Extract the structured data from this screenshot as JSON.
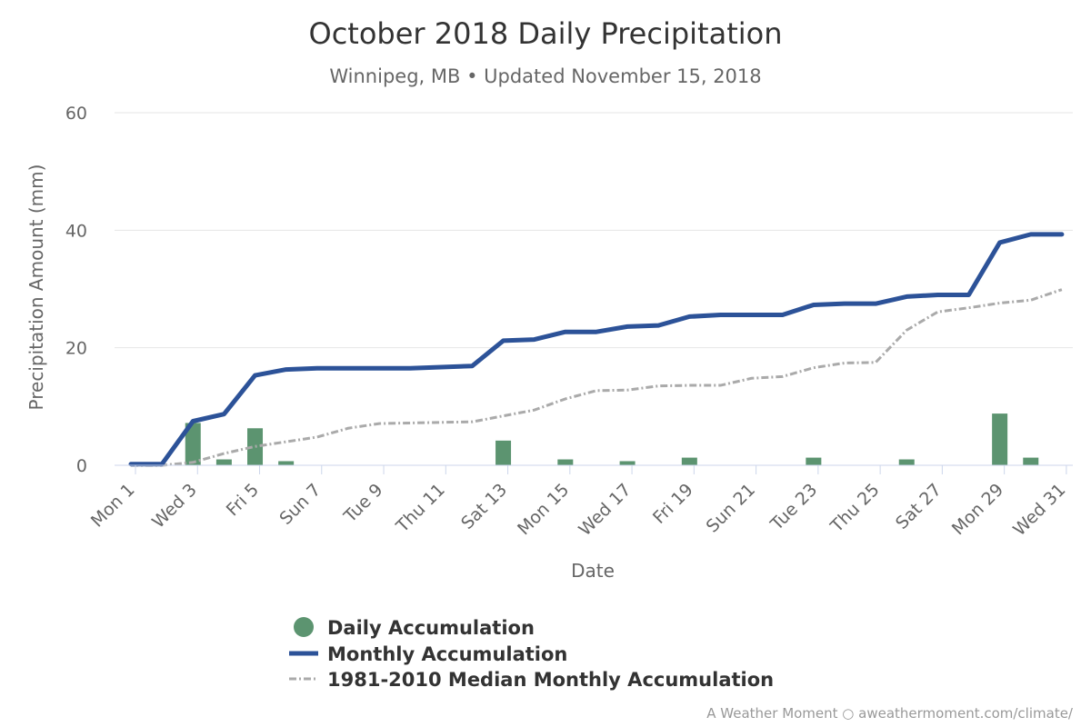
{
  "chart_data": {
    "type": "bar",
    "title": "October 2018 Daily Precipitation",
    "subtitle": "Winnipeg, MB • Updated November 15, 2018",
    "xlabel": "Date",
    "ylabel": "Precipitation Amount (mm)",
    "ylim": [
      0,
      60
    ],
    "yticks": [
      0,
      20,
      40,
      60
    ],
    "grid": true,
    "legend_position": "bottom",
    "x_tick_labels": [
      "Mon 1",
      "Wed 3",
      "Fri 5",
      "Sun 7",
      "Tue 9",
      "Thu 11",
      "Sat 13",
      "Mon 15",
      "Wed 17",
      "Fri 19",
      "Sun 21",
      "Tue 23",
      "Thu 25",
      "Sat 27",
      "Mon 29",
      "Wed 31"
    ],
    "x_tick_days": [
      1,
      3,
      5,
      7,
      9,
      11,
      13,
      15,
      17,
      19,
      21,
      23,
      25,
      27,
      29,
      31
    ],
    "days": [
      1,
      2,
      3,
      4,
      5,
      6,
      7,
      8,
      9,
      10,
      11,
      12,
      13,
      14,
      15,
      16,
      17,
      18,
      19,
      20,
      21,
      22,
      23,
      24,
      25,
      26,
      27,
      28,
      29,
      30,
      31
    ],
    "series": [
      {
        "name": "Daily Accumulation",
        "kind": "bar",
        "color": "#5c9470",
        "values": [
          0,
          0,
          7.2,
          1.0,
          6.3,
          0.7,
          0,
          0,
          0,
          0,
          0,
          0,
          4.2,
          0,
          1.0,
          0,
          0.7,
          0,
          1.3,
          0,
          0,
          0,
          1.3,
          0,
          0,
          1.0,
          0,
          0,
          8.8,
          1.3,
          0
        ]
      },
      {
        "name": "Monthly Accumulation",
        "kind": "line",
        "color": "#2c5298",
        "values": [
          0.2,
          0.2,
          7.5,
          8.7,
          15.3,
          16.3,
          16.5,
          16.5,
          16.5,
          16.5,
          16.7,
          16.9,
          21.2,
          21.4,
          22.7,
          22.7,
          23.6,
          23.8,
          25.3,
          25.6,
          25.6,
          25.6,
          27.3,
          27.5,
          27.5,
          28.7,
          29.0,
          29.0,
          37.9,
          39.3,
          39.3
        ]
      },
      {
        "name": "1981-2010 Median Monthly Accumulation",
        "kind": "line",
        "dash": "dash-dot",
        "color": "#aaaaaa",
        "values": [
          0,
          0,
          0.5,
          2.0,
          3.2,
          4.0,
          4.8,
          6.3,
          7.1,
          7.2,
          7.3,
          7.4,
          8.4,
          9.4,
          11.3,
          12.7,
          12.8,
          13.5,
          13.6,
          13.6,
          14.8,
          15.1,
          16.6,
          17.4,
          17.5,
          23.0,
          26.1,
          26.8,
          27.6,
          28.1,
          29.9
        ]
      }
    ]
  },
  "credit": "A Weather Moment ○ aweathermoment.com/climate/"
}
